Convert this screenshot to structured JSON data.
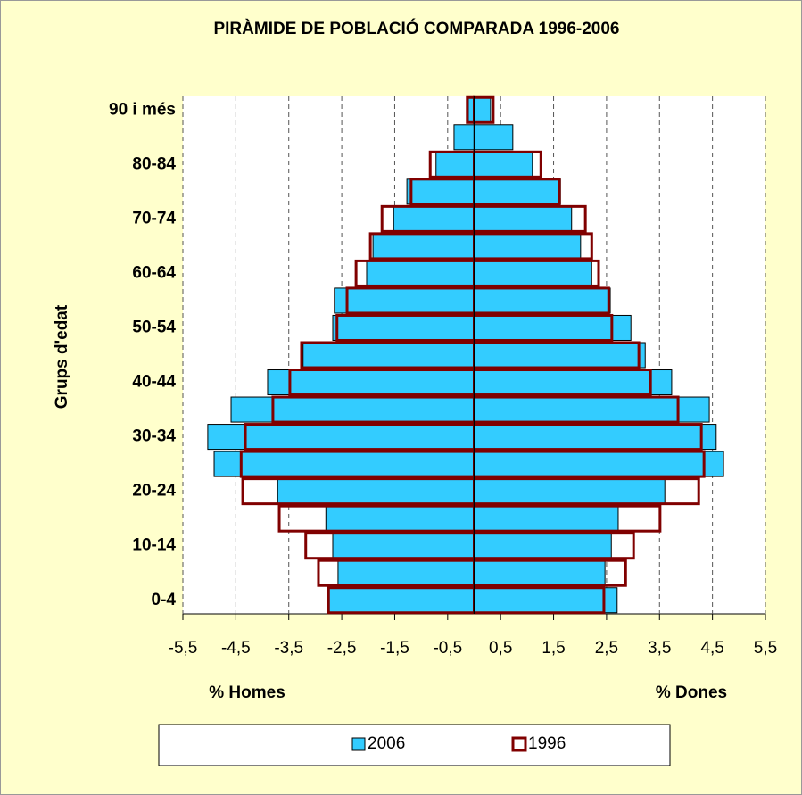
{
  "chart_data": {
    "type": "pyramid",
    "title": "PIRÀMIDE DE POBLACIÓ COMPARADA 1996-2006",
    "y_label": "Grups d'edat",
    "x_label_left": "% Homes",
    "x_label_right": "% Dones",
    "categories": [
      "0-4",
      null,
      "10-14",
      null,
      "20-24",
      null,
      "30-34",
      null,
      "40-44",
      null,
      "50-54",
      null,
      "60-64",
      null,
      "70-74",
      null,
      "80-84",
      null,
      "90 i més"
    ],
    "series": [
      {
        "name": "2006",
        "color": "#33ccff",
        "values_left": [
          -2.75,
          -2.57,
          -2.67,
          -2.8,
          -3.71,
          -4.91,
          -5.03,
          -4.59,
          -3.9,
          -3.23,
          -2.67,
          -2.64,
          -2.03,
          -1.91,
          -1.52,
          -1.27,
          -0.72,
          -0.38,
          -0.11
        ],
        "values_right": [
          2.7,
          2.47,
          2.59,
          2.72,
          3.6,
          4.71,
          4.57,
          4.44,
          3.73,
          3.23,
          2.96,
          2.57,
          2.22,
          2.01,
          1.84,
          1.63,
          1.1,
          0.73,
          0.31
        ]
      },
      {
        "name": "1996",
        "color": "#800000",
        "values_left": [
          -2.75,
          -2.94,
          -3.18,
          -3.68,
          -4.37,
          -4.4,
          -4.32,
          -3.8,
          -3.48,
          -3.26,
          -2.59,
          -2.4,
          -2.23,
          -1.96,
          -1.74,
          -1.19,
          -0.83,
          0,
          -0.13
        ],
        "values_right": [
          2.45,
          2.86,
          3.01,
          3.51,
          4.24,
          4.34,
          4.29,
          3.85,
          3.33,
          3.11,
          2.6,
          2.54,
          2.35,
          2.22,
          2.1,
          1.61,
          1.26,
          0,
          0.36
        ]
      }
    ],
    "xlim": [
      -5.5,
      5.5
    ],
    "xticks": [
      {
        "value": -5.5,
        "label": "-5,5"
      },
      {
        "value": -4.5,
        "label": "-4,5"
      },
      {
        "value": -3.5,
        "label": "-3,5"
      },
      {
        "value": -2.5,
        "label": "-2,5"
      },
      {
        "value": -1.5,
        "label": "-1,5"
      },
      {
        "value": -0.5,
        "label": "-0,5"
      },
      {
        "value": 0.5,
        "label": "0,5"
      },
      {
        "value": 1.5,
        "label": "1,5"
      },
      {
        "value": 2.5,
        "label": "2,5"
      },
      {
        "value": 3.5,
        "label": "3,5"
      },
      {
        "value": 4.5,
        "label": "4,5"
      },
      {
        "value": 5.5,
        "label": "5,5"
      }
    ],
    "grid": true,
    "legend": "bottom"
  }
}
